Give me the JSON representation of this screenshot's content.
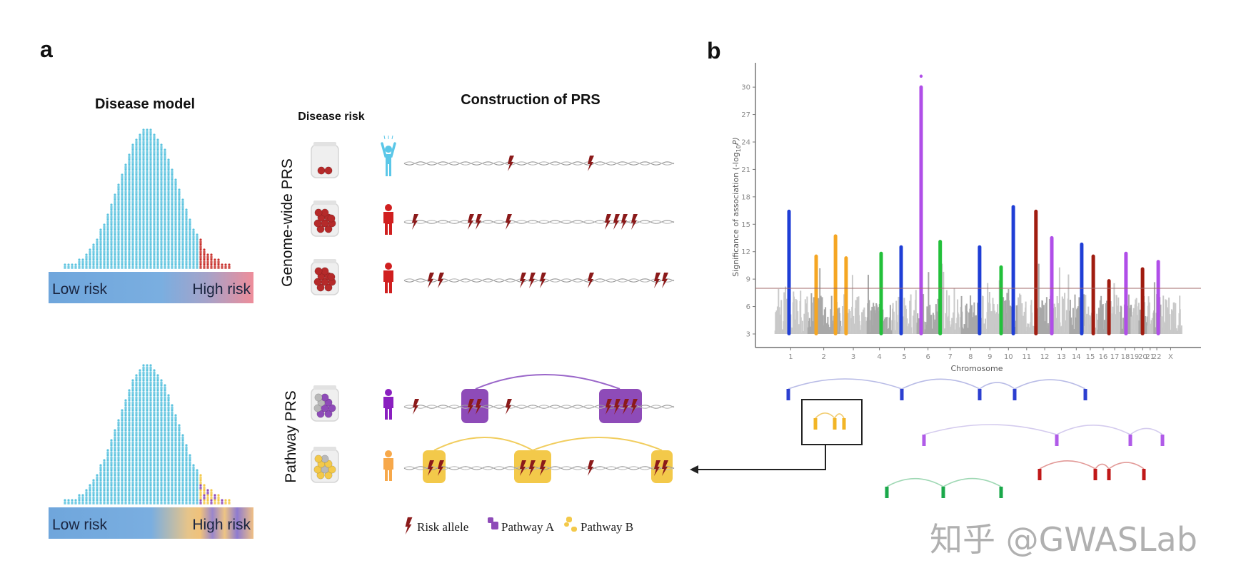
{
  "panel_a": {
    "label": "a",
    "disease_model_title": "Disease model",
    "disease_risk_title": "Disease risk",
    "construction_title": "Construction of PRS",
    "genome_wide_label": "Genome-wide PRS",
    "pathway_label": "Pathway PRS",
    "low_risk": "Low risk",
    "high_risk": "High risk",
    "legend": {
      "risk_allele": "Risk allele",
      "pathway_a": "Pathway A",
      "pathway_b": "Pathway B"
    },
    "colors": {
      "population": "#5cc3df",
      "high_risk_genome_wide": "#c8302c",
      "pathway_a": "#8e4bb8",
      "pathway_b": "#f3c94a",
      "risk_allele": "#8b1a1a",
      "healthy_person": "#5bc7e8",
      "affected_person": "#d01f1f",
      "pathway_a_person": "#8a1fc0",
      "pathway_b_person": "#f7a84a"
    }
  },
  "panel_b": {
    "label": "b",
    "pathway_colors": [
      "#2c3fd0",
      "#b05be8",
      "#c01818",
      "#1aa84a",
      "#f2b526"
    ]
  },
  "chart_data": {
    "type": "scatter",
    "subtype": "manhattan",
    "xlabel": "Chromosome",
    "ylabel": "Significance of association (-log10P)",
    "ylabel_main": "Significance of association (-log",
    "ylabel_sub": "10",
    "ylabel_end": "P)",
    "x_tick_labels": [
      "1",
      "2",
      "3",
      "4",
      "5",
      "6",
      "7",
      "8",
      "9",
      "10",
      "11",
      "12",
      "13",
      "14",
      "15",
      "16",
      "17",
      "18",
      "19",
      "20",
      "21",
      "22",
      "X"
    ],
    "y_ticks": [
      3,
      6,
      9,
      12,
      15,
      18,
      21,
      24,
      27,
      30
    ],
    "ylim": [
      3,
      31.5
    ],
    "significance_threshold": 8,
    "background_colors": [
      "#c9c9c9",
      "#a8a8a8"
    ],
    "grid": false,
    "highlighted_loci": [
      {
        "chr": "1",
        "pos_mb": 112,
        "value": 16.6,
        "color": "#1f3ed6"
      },
      {
        "chr": "2",
        "pos_mb": 65,
        "value": 11.7,
        "color": "#f5a623"
      },
      {
        "chr": "2",
        "pos_mb": 209,
        "value": 13.9,
        "color": "#f5a623"
      },
      {
        "chr": "3",
        "pos_mb": 45,
        "value": 11.5,
        "color": "#f5a623"
      },
      {
        "chr": "4",
        "pos_mb": 108,
        "value": 12.0,
        "color": "#22c03a"
      },
      {
        "chr": "5",
        "pos_mb": 66,
        "value": 12.7,
        "color": "#1f3ed6"
      },
      {
        "chr": "6",
        "pos_mb": 34,
        "value": 30.2,
        "color": "#b04ee8",
        "top_point": 31.2
      },
      {
        "chr": "7",
        "pos_mb": 5,
        "value": 13.3,
        "color": "#22c03a"
      },
      {
        "chr": "8",
        "pos_mb": 140,
        "value": 12.7,
        "color": "#1f3ed6"
      },
      {
        "chr": "10",
        "pos_mb": 13,
        "value": 10.5,
        "color": "#22c03a"
      },
      {
        "chr": "10",
        "pos_mb": 104,
        "value": 17.1,
        "color": "#1f3ed6"
      },
      {
        "chr": "12",
        "pos_mb": 2,
        "value": 16.6,
        "color": "#a01c10"
      },
      {
        "chr": "12",
        "pos_mb": 120,
        "value": 13.7,
        "color": "#b04ee8"
      },
      {
        "chr": "14",
        "pos_mb": 94,
        "value": 13.0,
        "color": "#1f3ed6"
      },
      {
        "chr": "15",
        "pos_mb": 73,
        "value": 11.7,
        "color": "#a01c10"
      },
      {
        "chr": "16",
        "pos_mb": 88,
        "value": 9.0,
        "color": "#a01c10"
      },
      {
        "chr": "18",
        "pos_mb": 44,
        "value": 12.0,
        "color": "#b04ee8"
      },
      {
        "chr": "20",
        "pos_mb": 30,
        "value": 10.3,
        "color": "#a01c10"
      },
      {
        "chr": "22",
        "pos_mb": 36,
        "value": 11.1,
        "color": "#b04ee8"
      }
    ]
  },
  "watermark": "知乎 @GWASLab"
}
